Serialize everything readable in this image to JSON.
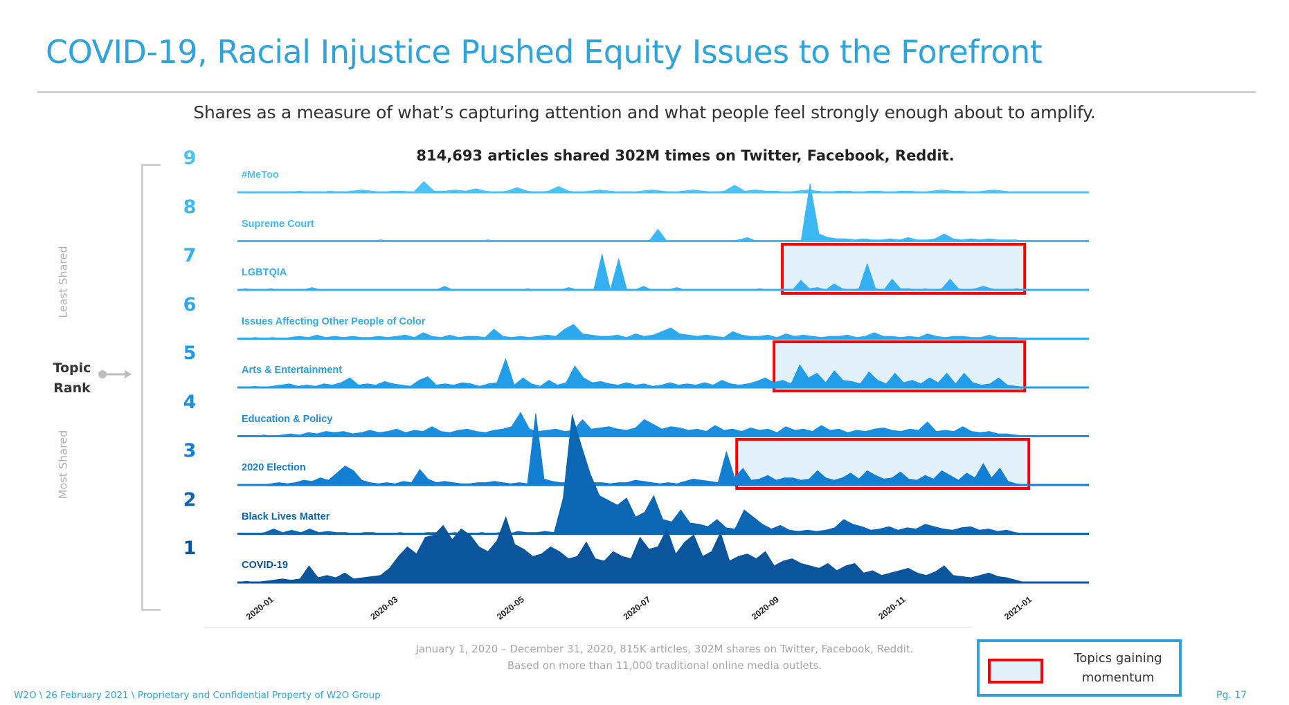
{
  "slide": {
    "title": "COVID-19, Racial Injustice Pushed Equity Issues to the Forefront",
    "subtitle": "Shares as a measure of what’s capturing attention and what people feel strongly enough about to amplify.",
    "chart_heading": "814,693 articles shared 302M times on Twitter, Facebook, Reddit.",
    "side_labels": {
      "top": "Least Shared",
      "bottom": "Most Shared",
      "axis_title_line1": "Topic",
      "axis_title_line2": "Rank"
    },
    "note_line1": "January 1, 2020 – December 31, 2020, 815K articles, 302M shares on Twitter, Facebook, Reddit.",
    "note_line2": "Based on more than 11,000 traditional online media outlets.",
    "legend": {
      "label_line1": "Topics gaining",
      "label_line2": "momentum",
      "swatch_fill": "#e1f0f9",
      "swatch_border": "#ff0000",
      "box_border": "#2fa2dc"
    },
    "footer": "W2O \\ 26 February 2021 \\ Proprietary and Confidential Property of W2O Group",
    "page": "Pg. 17",
    "colors": {
      "title": "#2ea3dc",
      "highlight_fill": "#e1f0f9",
      "highlight_border": "#ff0000"
    }
  },
  "chart_data": {
    "type": "area",
    "title": "814,693 articles shared 302M times on Twitter, Facebook, Reddit.",
    "xlabel": "",
    "ylabel": "Topic Rank",
    "x_ticks": [
      "2020-01",
      "2020-03",
      "2020-05",
      "2020-07",
      "2020-09",
      "2020-11",
      "2021-01"
    ],
    "x_range": [
      "2019-12-17",
      "2021-01-31"
    ],
    "data_end": "2020-12-31",
    "y_unit": "relative shares (0-100 within chart scale)",
    "grid": false,
    "legend_position": "bottom-right",
    "series": [
      {
        "rank": "9",
        "name": "#MeToo",
        "color": "#4cc2f6",
        "highlight": null,
        "values": [
          0,
          0,
          0,
          0,
          0,
          0,
          1,
          0,
          0,
          1,
          0,
          1,
          2,
          1,
          0,
          1,
          1,
          0,
          9,
          1,
          1,
          2,
          1,
          3,
          1,
          0,
          1,
          4,
          1,
          0,
          1,
          5,
          1,
          0,
          1,
          2,
          1,
          0,
          0,
          1,
          2,
          1,
          0,
          1,
          2,
          1,
          0,
          1,
          6,
          1,
          2,
          1,
          1,
          0,
          1,
          2,
          1,
          0,
          1,
          1,
          0,
          1,
          1,
          0,
          1,
          1,
          0,
          1,
          2,
          1,
          1,
          0,
          1,
          2,
          1,
          0,
          0
        ]
      },
      {
        "rank": "8",
        "name": "Supreme Court",
        "color": "#3eb8f4",
        "highlight": null,
        "values": [
          0,
          0,
          0,
          0,
          0,
          0,
          0,
          0,
          0,
          0,
          0,
          0,
          0,
          0,
          0,
          0,
          1,
          0,
          0,
          0,
          0,
          0,
          0,
          0,
          0,
          0,
          0,
          0,
          1,
          0,
          0,
          0,
          0,
          0,
          0,
          0,
          0,
          0,
          0,
          0,
          0,
          0,
          0,
          0,
          0,
          0,
          0,
          10,
          0,
          0,
          0,
          0,
          0,
          0,
          0,
          0,
          1,
          3,
          0,
          0,
          0,
          0,
          0,
          0,
          48,
          6,
          3,
          2,
          2,
          1,
          2,
          1,
          1,
          2,
          1,
          3,
          1,
          1,
          2,
          6,
          2,
          1,
          2,
          1,
          2,
          1,
          1,
          1,
          0
        ]
      },
      {
        "rank": "7",
        "name": "LGBTQIA",
        "color": "#34b0f2",
        "highlight": [
          "2020-09-05",
          "2020-12-31"
        ],
        "values": [
          0,
          1,
          0,
          0,
          1,
          0,
          0,
          0,
          0,
          2,
          0,
          0,
          0,
          0,
          0,
          0,
          0,
          0,
          0,
          0,
          0,
          0,
          0,
          0,
          0,
          3,
          0,
          0,
          0,
          0,
          0,
          0,
          0,
          0,
          0,
          1,
          0,
          0,
          0,
          0,
          2,
          0,
          0,
          0,
          30,
          0,
          26,
          0,
          0,
          3,
          0,
          0,
          0,
          2,
          0,
          0,
          0,
          0,
          0,
          0,
          0,
          0,
          0,
          1,
          0,
          0,
          0,
          0,
          8,
          1,
          2,
          0,
          5,
          1,
          0,
          1,
          22,
          1,
          0,
          9,
          1,
          1,
          0,
          1,
          0,
          1,
          9,
          1,
          0,
          1,
          3,
          1,
          0,
          0,
          1,
          0
        ]
      },
      {
        "rank": "6",
        "name": "Issues Affecting Other People of Color",
        "color": "#2ea9f0",
        "highlight": null,
        "values": [
          0,
          0,
          1,
          0,
          1,
          0,
          1,
          2,
          1,
          3,
          1,
          2,
          1,
          2,
          1,
          1,
          2,
          1,
          2,
          3,
          1,
          5,
          2,
          1,
          3,
          1,
          2,
          2,
          1,
          8,
          2,
          1,
          2,
          1,
          2,
          3,
          2,
          8,
          12,
          4,
          3,
          2,
          2,
          3,
          1,
          4,
          2,
          3,
          6,
          9,
          4,
          3,
          2,
          3,
          2,
          1,
          6,
          3,
          2,
          2,
          3,
          1,
          4,
          2,
          3,
          2,
          1,
          2,
          2,
          3,
          1,
          2,
          5,
          2,
          2,
          1,
          2,
          1,
          4,
          2,
          1,
          2,
          2,
          1,
          1,
          3,
          1,
          1,
          1,
          0
        ]
      },
      {
        "rank": "5",
        "name": "Arts & Entertainment",
        "color": "#229ee9",
        "highlight": [
          "2020-09-01",
          "2020-12-31"
        ],
        "values": [
          0,
          0,
          1,
          0,
          1,
          2,
          3,
          1,
          2,
          1,
          3,
          2,
          4,
          8,
          2,
          3,
          2,
          5,
          3,
          2,
          1,
          6,
          9,
          2,
          3,
          2,
          4,
          3,
          1,
          3,
          4,
          24,
          2,
          8,
          3,
          1,
          6,
          2,
          4,
          18,
          8,
          4,
          5,
          3,
          2,
          4,
          2,
          3,
          1,
          2,
          4,
          2,
          3,
          2,
          4,
          2,
          6,
          3,
          2,
          3,
          5,
          8,
          4,
          6,
          3,
          19,
          8,
          12,
          4,
          14,
          6,
          5,
          3,
          13,
          6,
          3,
          12,
          4,
          6,
          3,
          8,
          4,
          12,
          3,
          12,
          4,
          2,
          3,
          8,
          2,
          1,
          0
        ]
      },
      {
        "rank": "4",
        "name": "Education & Policy",
        "color": "#1a8fe0",
        "highlight": null,
        "values": [
          0,
          0,
          0,
          1,
          0,
          1,
          2,
          1,
          3,
          2,
          4,
          3,
          4,
          2,
          3,
          5,
          3,
          4,
          6,
          3,
          5,
          4,
          8,
          4,
          3,
          5,
          6,
          4,
          3,
          5,
          6,
          8,
          20,
          6,
          4,
          5,
          6,
          4,
          5,
          14,
          6,
          7,
          8,
          6,
          5,
          7,
          14,
          10,
          6,
          8,
          7,
          5,
          6,
          4,
          9,
          5,
          6,
          4,
          7,
          5,
          6,
          3,
          8,
          5,
          6,
          4,
          9,
          5,
          6,
          3,
          5,
          4,
          6,
          7,
          5,
          4,
          6,
          5,
          12,
          4,
          5,
          4,
          8,
          4,
          3,
          4,
          2,
          2,
          1,
          0
        ]
      },
      {
        "rank": "3",
        "name": "2020 Election",
        "color": "#127fd2",
        "highlight": [
          "2020-08-14",
          "2021-01-02"
        ],
        "values": [
          0,
          0,
          0,
          0,
          1,
          2,
          1,
          2,
          4,
          3,
          6,
          4,
          10,
          16,
          12,
          4,
          2,
          1,
          2,
          1,
          3,
          2,
          13,
          5,
          2,
          3,
          2,
          1,
          1,
          2,
          2,
          3,
          2,
          1,
          2,
          1,
          60,
          5,
          3,
          2,
          2,
          1,
          3,
          2,
          2,
          1,
          2,
          2,
          4,
          3,
          2,
          1,
          2,
          1,
          3,
          5,
          4,
          3,
          2,
          28,
          6,
          14,
          4,
          5,
          8,
          4,
          6,
          6,
          4,
          5,
          12,
          6,
          4,
          6,
          10,
          5,
          12,
          8,
          5,
          6,
          11,
          5,
          4,
          8,
          5,
          12,
          8,
          4,
          10,
          6,
          18,
          6,
          14,
          3,
          1,
          0
        ]
      },
      {
        "rank": "2",
        "name": "Black Lives Matter",
        "color": "#0b66b3",
        "highlight": null,
        "values": [
          0,
          0,
          0,
          1,
          4,
          1,
          3,
          1,
          4,
          1,
          2,
          1,
          1,
          0,
          1,
          1,
          0,
          0,
          1,
          0,
          0,
          1,
          1,
          0,
          1,
          0,
          0,
          1,
          0,
          1,
          0,
          2,
          1,
          1,
          2,
          1,
          30,
          100,
          74,
          50,
          32,
          28,
          24,
          30,
          14,
          18,
          32,
          12,
          10,
          20,
          9,
          8,
          6,
          12,
          5,
          4,
          20,
          14,
          8,
          4,
          7,
          3,
          2,
          3,
          2,
          3,
          5,
          12,
          8,
          6,
          3,
          4,
          6,
          3,
          5,
          4,
          8,
          6,
          4,
          3,
          5,
          6,
          3,
          4,
          2,
          3,
          1,
          0
        ]
      },
      {
        "rank": "1",
        "name": "COVID-19",
        "color": "#0a559c",
        "highlight": null,
        "values": [
          0,
          1,
          0,
          1,
          2,
          3,
          2,
          3,
          14,
          4,
          6,
          4,
          8,
          3,
          4,
          5,
          6,
          12,
          22,
          30,
          24,
          38,
          40,
          48,
          36,
          45,
          40,
          30,
          26,
          35,
          55,
          32,
          28,
          22,
          24,
          30,
          26,
          20,
          22,
          34,
          20,
          18,
          26,
          22,
          20,
          38,
          28,
          30,
          45,
          24,
          34,
          40,
          22,
          26,
          42,
          18,
          22,
          24,
          20,
          26,
          14,
          18,
          20,
          16,
          14,
          12,
          16,
          10,
          14,
          16,
          8,
          10,
          6,
          8,
          10,
          12,
          8,
          6,
          9,
          14,
          6,
          5,
          4,
          6,
          8,
          5,
          4,
          2,
          0
        ]
      }
    ]
  }
}
